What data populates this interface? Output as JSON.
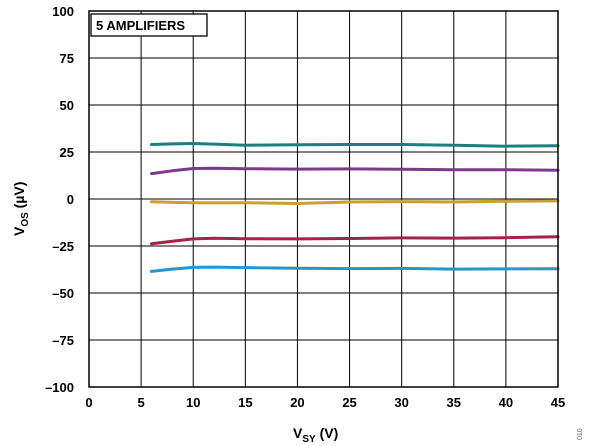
{
  "chart_data": {
    "type": "line",
    "annotation": "5 AMPLIFIERS",
    "xlabel_main": "V",
    "xlabel_sub": "SY",
    "xlabel_unit": " (V)",
    "ylabel_main": "V",
    "ylabel_sub": "OS",
    "ylabel_unit": " (µV)",
    "xlim": [
      0,
      45
    ],
    "ylim": [
      -100,
      100
    ],
    "xticks": [
      0,
      5,
      10,
      15,
      20,
      25,
      30,
      35,
      40,
      45
    ],
    "yticks": [
      100,
      75,
      50,
      25,
      0,
      -25,
      -50,
      -75,
      -100
    ],
    "ytick_labels": [
      "100",
      "75",
      "50",
      "25",
      "0",
      "–25",
      "–50",
      "–75",
      "–100"
    ],
    "grid": true,
    "figure_id": "010",
    "series": [
      {
        "color": "#1b7f80",
        "x": [
          6,
          8,
          10,
          12,
          15,
          20,
          25,
          30,
          35,
          40,
          45
        ],
        "y": [
          29,
          29.3,
          29.5,
          29.2,
          28.6,
          28.9,
          29.0,
          29.0,
          28.6,
          28.1,
          28.3
        ]
      },
      {
        "color": "#7b3a8a",
        "x": [
          6,
          8,
          10,
          12,
          15,
          20,
          25,
          30,
          35,
          40,
          45
        ],
        "y": [
          13.5,
          15,
          16.2,
          16.4,
          16.1,
          15.9,
          16.0,
          15.8,
          15.6,
          15.6,
          15.3
        ]
      },
      {
        "color": "#c9a032",
        "x": [
          6,
          8,
          10,
          12,
          15,
          20,
          25,
          30,
          35,
          40,
          45
        ],
        "y": [
          -1.5,
          -1.8,
          -2.0,
          -2.1,
          -2.0,
          -2.4,
          -1.6,
          -1.4,
          -1.6,
          -1.2,
          -1.0
        ]
      },
      {
        "color": "#a3234b",
        "x": [
          6,
          8,
          10,
          12,
          15,
          20,
          25,
          30,
          35,
          40,
          45
        ],
        "y": [
          -23.8,
          -22.5,
          -21.2,
          -20.9,
          -21.1,
          -21.2,
          -21.0,
          -20.7,
          -20.8,
          -20.6,
          -20.1
        ]
      },
      {
        "color": "#1f9ad0",
        "x": [
          6,
          8,
          10,
          12,
          15,
          20,
          25,
          30,
          35,
          40,
          45
        ],
        "y": [
          -38.5,
          -37.3,
          -36.4,
          -36.2,
          -36.5,
          -36.8,
          -37.0,
          -36.9,
          -37.3,
          -37.2,
          -37.1
        ]
      }
    ]
  }
}
